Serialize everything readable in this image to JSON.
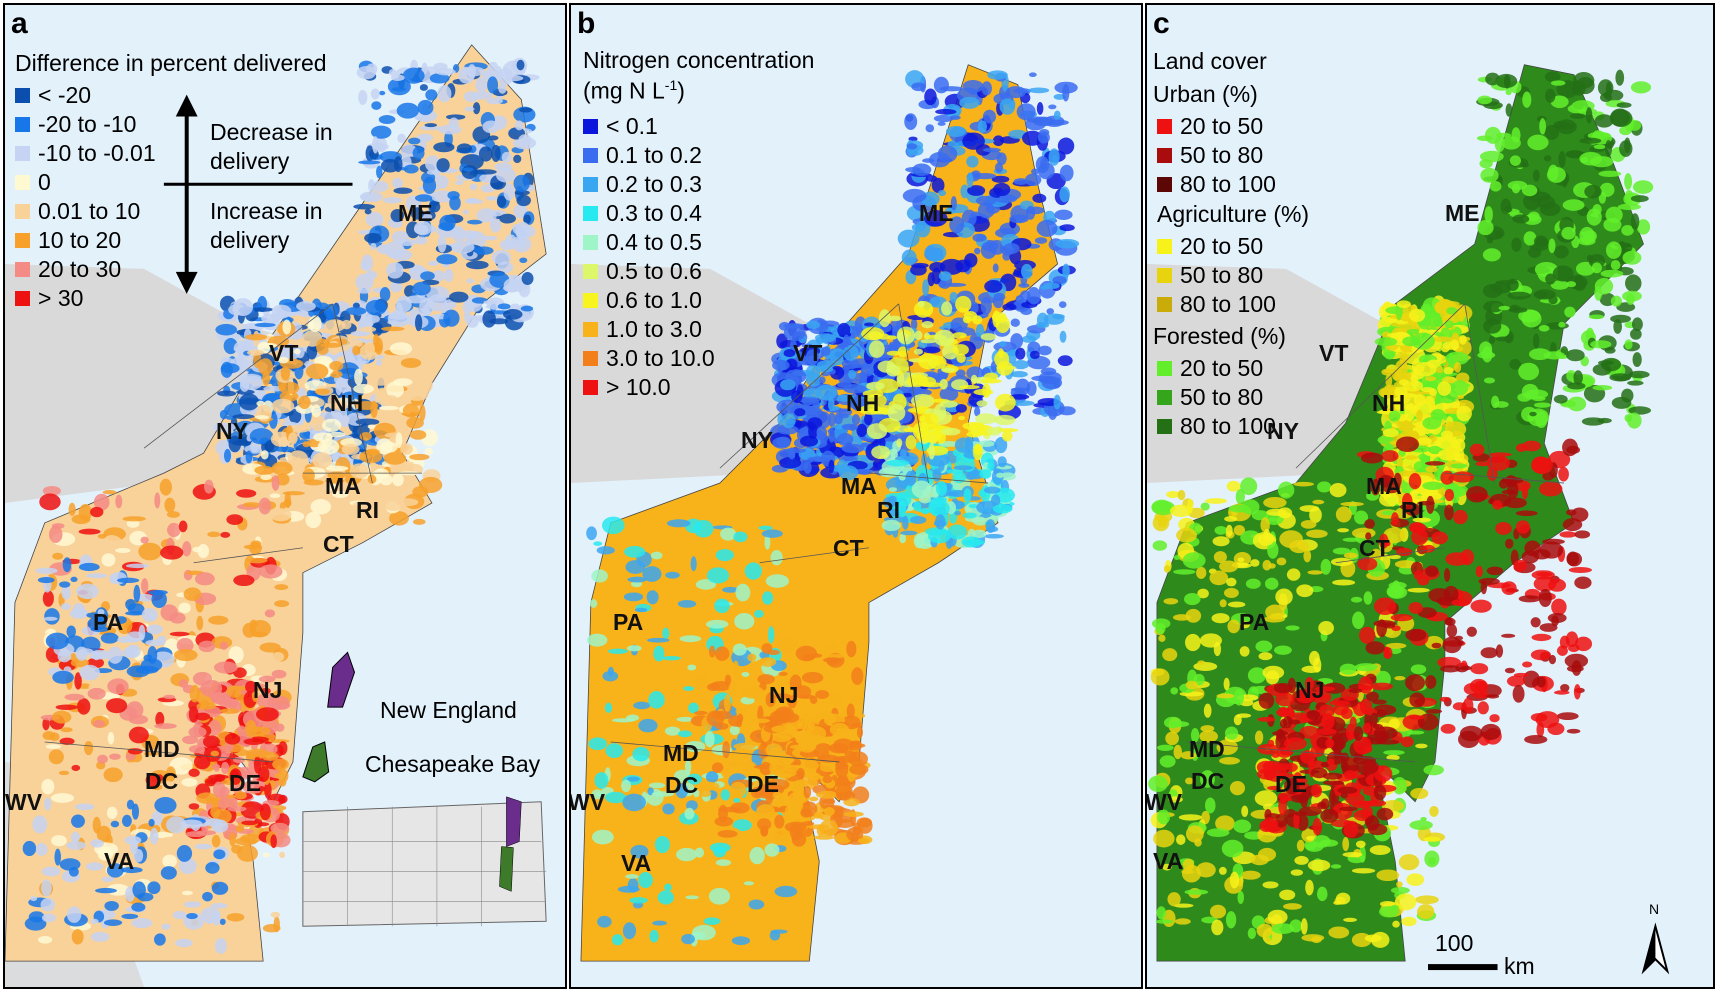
{
  "panels": [
    {
      "label": "a",
      "legend_title": "Difference in percent delivered",
      "legend": [
        {
          "label": "< -20",
          "color": "#0a4fae"
        },
        {
          "label": "-20 to -10",
          "color": "#1877e8"
        },
        {
          "label": "-10 to -0.01",
          "color": "#c6d3f2"
        },
        {
          "label": "0",
          "color": "#fff9d2"
        },
        {
          "label": "0.01 to 10",
          "color": "#f9d29a"
        },
        {
          "label": "10 to 20",
          "color": "#f7a12a"
        },
        {
          "label": "20 to 30",
          "color": "#f58b85"
        },
        {
          "label": "> 30",
          "color": "#ee1111"
        }
      ],
      "arrow_up_label": [
        "Decrease in",
        "delivery"
      ],
      "arrow_down_label": [
        "Increase in",
        "delivery"
      ],
      "inset_labels": [
        "New England",
        "Chesapeake Bay"
      ],
      "inset_colors": {
        "new_england": "#6b2d8c",
        "chesapeake": "#3d7a2a"
      }
    },
    {
      "label": "b",
      "legend_title": "Nitrogen concentration",
      "legend_unit": "(mg N L",
      "legend_unit_sup": "-1",
      "legend_unit_end": ")",
      "legend": [
        {
          "label": "< 0.1",
          "color": "#0b16dc"
        },
        {
          "label": "0.1 to 0.2",
          "color": "#3a6cf0"
        },
        {
          "label": "0.2 to 0.3",
          "color": "#39a6f2"
        },
        {
          "label": "0.3 to 0.4",
          "color": "#27e9ef"
        },
        {
          "label": "0.4 to 0.5",
          "color": "#9ff5c8"
        },
        {
          "label": "0.5 to 0.6",
          "color": "#dcf86a"
        },
        {
          "label": "0.6 to 1.0",
          "color": "#f7f41e"
        },
        {
          "label": "1.0 to 3.0",
          "color": "#f8b21a"
        },
        {
          "label": "3.0 to 10.0",
          "color": "#f27f1a"
        },
        {
          "label": "> 10.0",
          "color": "#ee1111"
        }
      ]
    },
    {
      "label": "c",
      "legend_title": "Land cover",
      "groups": [
        {
          "title": "Urban (%)",
          "items": [
            {
              "label": "20 to 50",
              "color": "#ee1111"
            },
            {
              "label": "50 to 80",
              "color": "#a80c0c"
            },
            {
              "label": "80 to 100",
              "color": "#5c0606"
            }
          ]
        },
        {
          "title": "Agriculture (%)",
          "items": [
            {
              "label": "20 to 50",
              "color": "#f7f21a"
            },
            {
              "label": "50 to 80",
              "color": "#e7d40e"
            },
            {
              "label": "80 to 100",
              "color": "#c9ab0a"
            }
          ]
        },
        {
          "title": "Forested (%)",
          "items": [
            {
              "label": "20 to 50",
              "color": "#62ee2a"
            },
            {
              "label": "50 to 80",
              "color": "#35a51c"
            },
            {
              "label": "80 to 100",
              "color": "#237015"
            }
          ]
        }
      ],
      "scalebar_label": "100",
      "scalebar_unit": "km",
      "north_label": "N"
    }
  ],
  "states": [
    "ME",
    "VT",
    "NH",
    "NY",
    "MA",
    "RI",
    "CT",
    "PA",
    "NJ",
    "MD",
    "DC",
    "DE",
    "WV",
    "VA"
  ],
  "colors": {
    "ocean": "#e3f1fb",
    "land_outside": "#d9d9d9",
    "panel_a_base": "#f9d29a",
    "panel_b_base": "#f8b21a",
    "panel_c_base": "#2f8a1c"
  }
}
